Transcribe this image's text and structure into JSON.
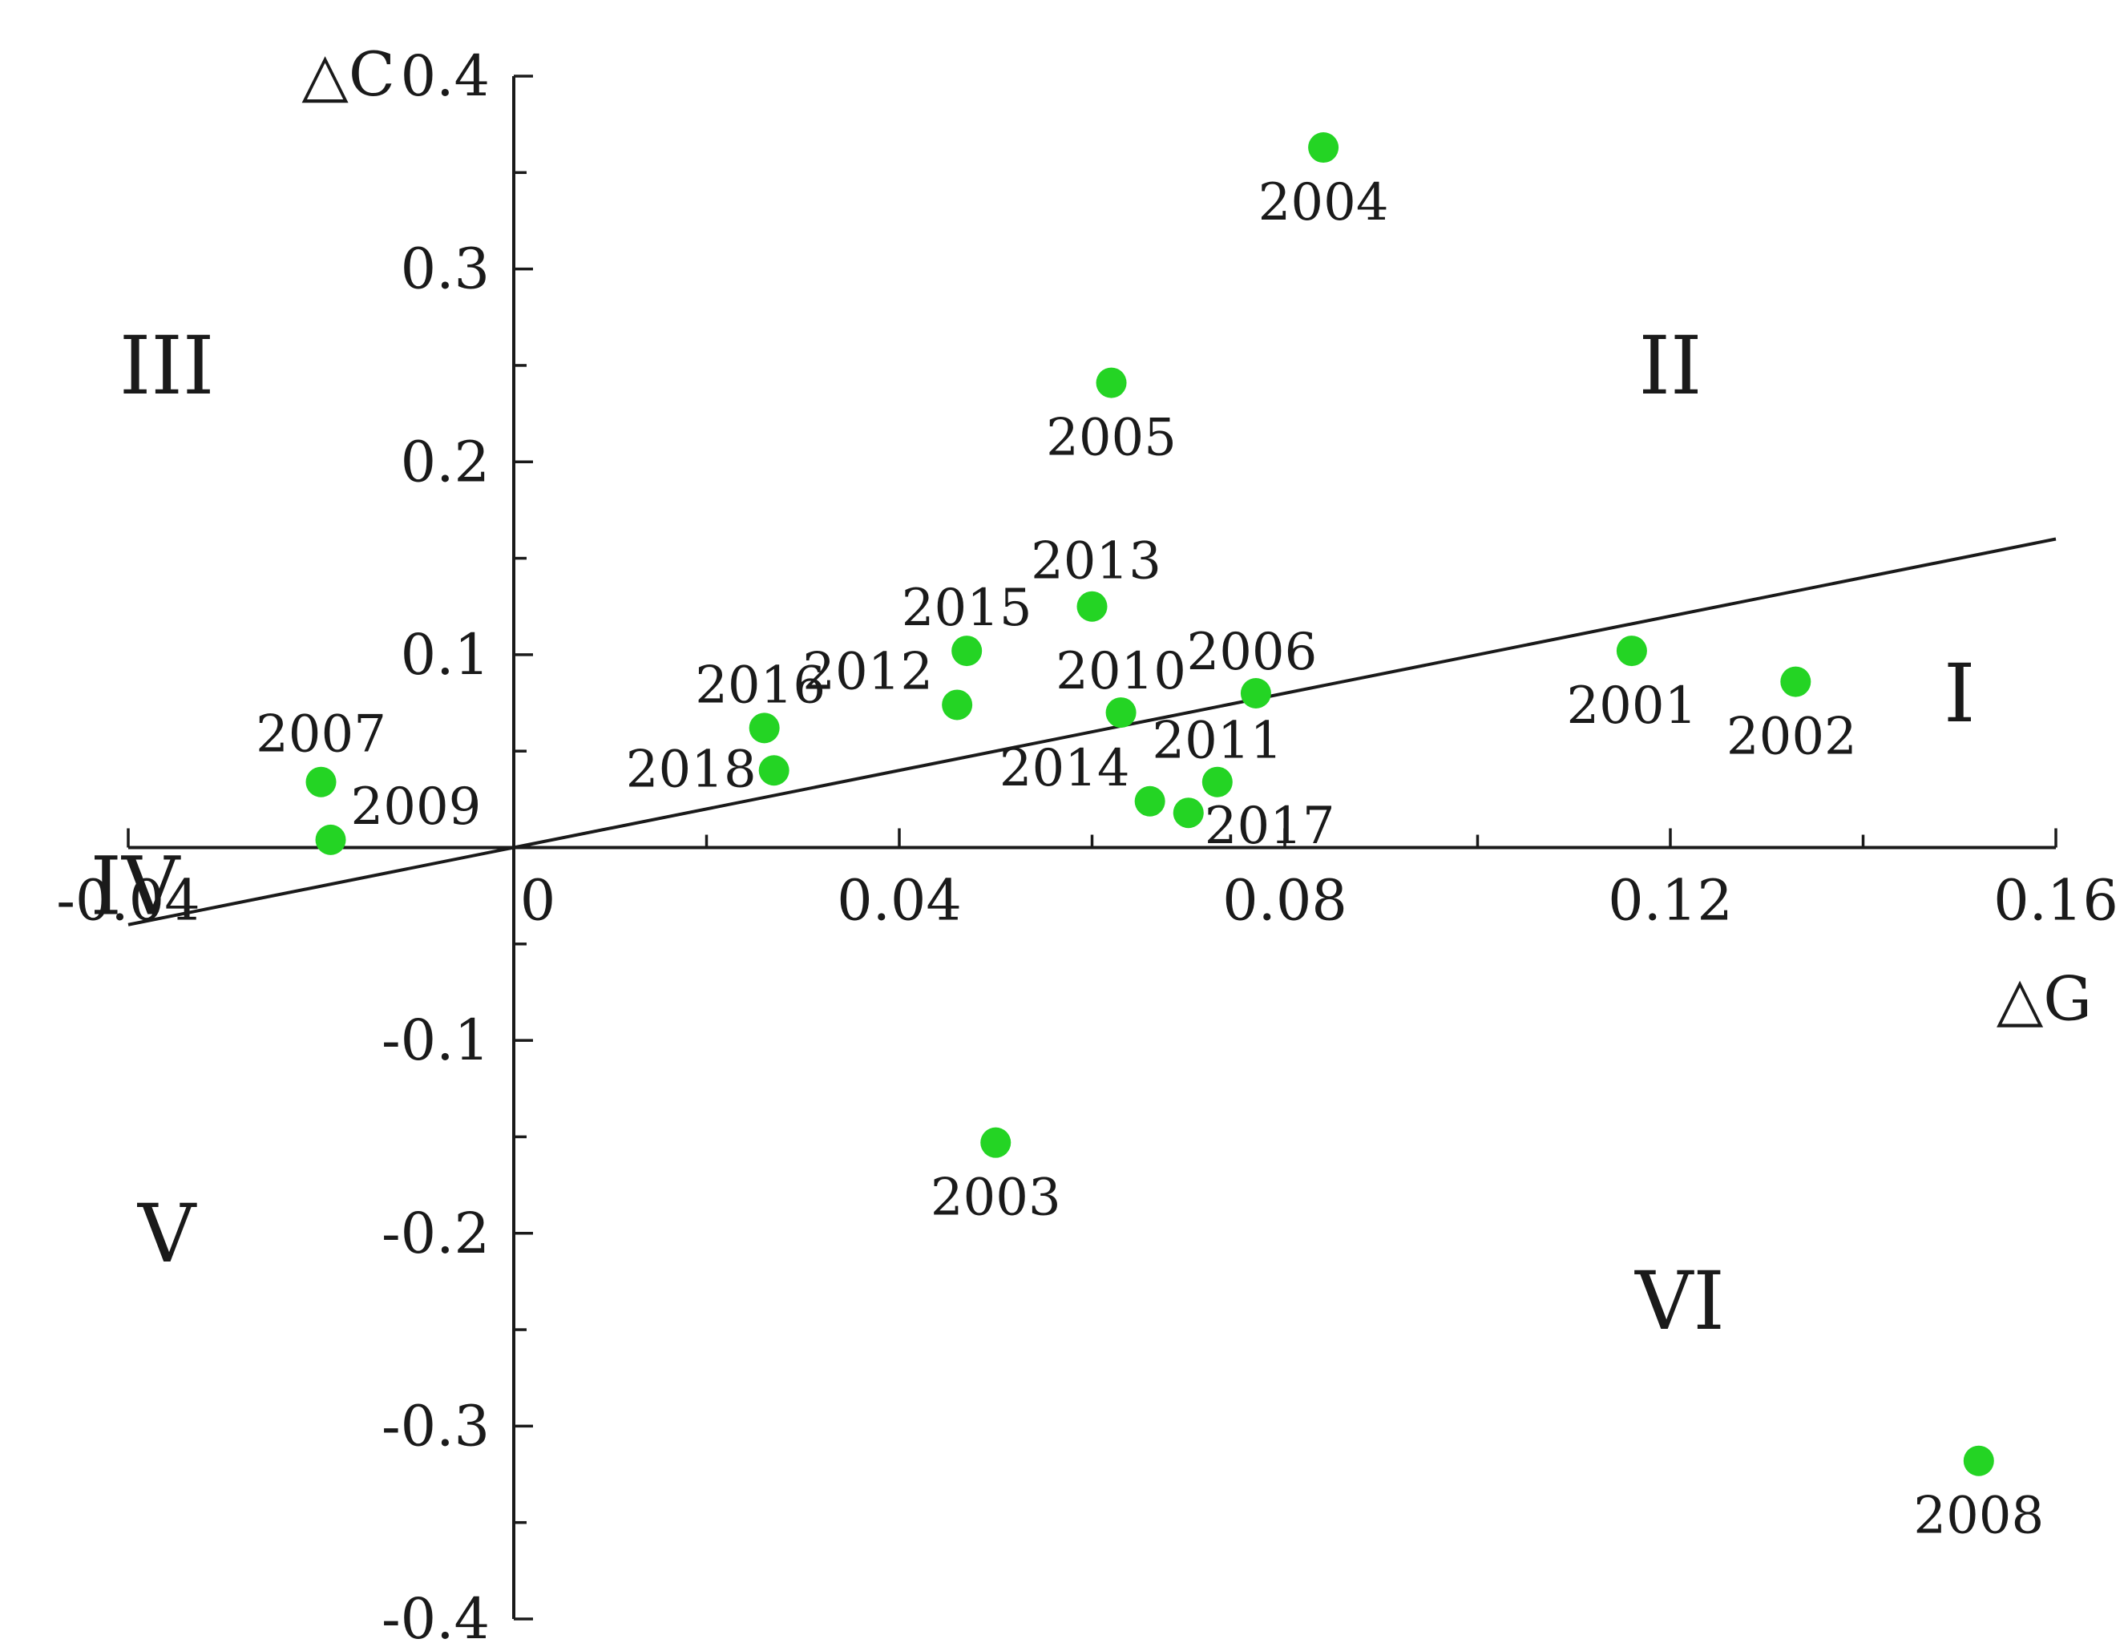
{
  "chart_data": {
    "type": "scatter",
    "xlabel": "△G",
    "ylabel": "△C",
    "xlim": [
      -0.04,
      0.16
    ],
    "ylim": [
      -0.4,
      0.4
    ],
    "x_ticks": [
      -0.04,
      0,
      0.04,
      0.08,
      0.12,
      0.16
    ],
    "x_tick_labels": [
      "-0.04",
      "0",
      "0.04",
      "0.08",
      "0.12",
      "0.16"
    ],
    "y_ticks": [
      -0.4,
      -0.3,
      -0.2,
      -0.1,
      0.1,
      0.2,
      0.3,
      0.4
    ],
    "y_tick_labels": [
      "-0.4",
      "-0.3",
      "-0.2",
      "-0.1",
      "0.1",
      "0.2",
      "0.3",
      "0.4"
    ],
    "point_color": "#24d424",
    "reference_line": {
      "x": [
        -0.04,
        0.16
      ],
      "y": [
        -0.04,
        0.16
      ]
    },
    "points": [
      {
        "label": "2001",
        "x": 0.116,
        "y": 0.102
      },
      {
        "label": "2002",
        "x": 0.133,
        "y": 0.086
      },
      {
        "label": "2003",
        "x": 0.05,
        "y": -0.153
      },
      {
        "label": "2004",
        "x": 0.084,
        "y": 0.363
      },
      {
        "label": "2005",
        "x": 0.062,
        "y": 0.241
      },
      {
        "label": "2006",
        "x": 0.077,
        "y": 0.08
      },
      {
        "label": "2007",
        "x": -0.02,
        "y": 0.034
      },
      {
        "label": "2008",
        "x": 0.152,
        "y": -0.318
      },
      {
        "label": "2009",
        "x": -0.019,
        "y": 0.004
      },
      {
        "label": "2010",
        "x": 0.063,
        "y": 0.07
      },
      {
        "label": "2011",
        "x": 0.073,
        "y": 0.034
      },
      {
        "label": "2012",
        "x": 0.046,
        "y": 0.074
      },
      {
        "label": "2013",
        "x": 0.06,
        "y": 0.125
      },
      {
        "label": "2014",
        "x": 0.066,
        "y": 0.024
      },
      {
        "label": "2015",
        "x": 0.047,
        "y": 0.102
      },
      {
        "label": "2016",
        "x": 0.026,
        "y": 0.062
      },
      {
        "label": "2017",
        "x": 0.07,
        "y": 0.018
      },
      {
        "label": "2018",
        "x": 0.027,
        "y": 0.04
      }
    ],
    "regions": [
      {
        "label": "I",
        "x": 0.15,
        "y": 0.08
      },
      {
        "label": "II",
        "x": 0.12,
        "y": 0.25
      },
      {
        "label": "III",
        "x": -0.036,
        "y": 0.25
      },
      {
        "label": "IV",
        "x": -0.0393,
        "y": -0.02
      },
      {
        "label": "V",
        "x": -0.036,
        "y": -0.2
      },
      {
        "label": "VI",
        "x": 0.121,
        "y": -0.235
      }
    ]
  }
}
